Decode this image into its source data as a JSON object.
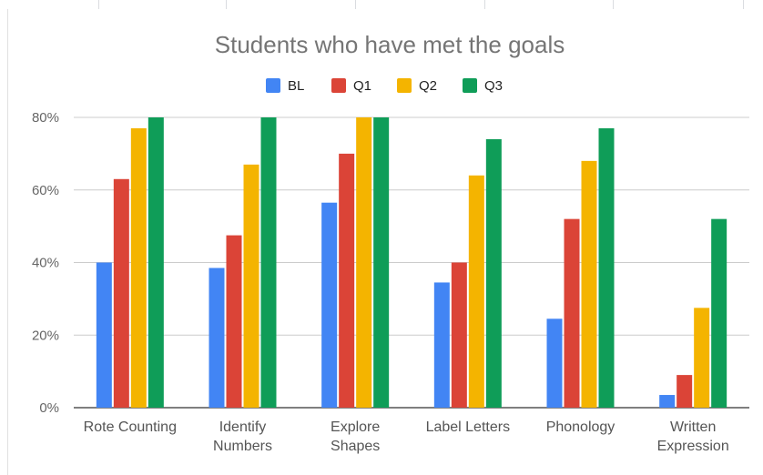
{
  "chart_data": {
    "type": "bar",
    "title": "Students who have met the goals",
    "categories": [
      [
        "Rote Counting"
      ],
      [
        "Identify",
        "Numbers"
      ],
      [
        "Explore",
        "Shapes"
      ],
      [
        "Label Letters"
      ],
      [
        "Phonology"
      ],
      [
        "Written",
        "Expression"
      ]
    ],
    "series": [
      {
        "name": "BL",
        "color": "#4285f4",
        "values": [
          40,
          38.5,
          56.5,
          34.5,
          24.5,
          3.5
        ]
      },
      {
        "name": "Q1",
        "color": "#db4437",
        "values": [
          63,
          47.5,
          70,
          40,
          52,
          9
        ]
      },
      {
        "name": "Q2",
        "color": "#f4b400",
        "values": [
          77,
          67,
          80,
          64,
          68,
          27.5
        ]
      },
      {
        "name": "Q3",
        "color": "#0f9d58",
        "values": [
          80,
          80,
          80,
          74,
          77,
          52
        ]
      }
    ],
    "ylim": [
      0,
      80
    ],
    "yticks": [
      0,
      20,
      40,
      60,
      80
    ],
    "ytick_format": "percent",
    "grid": true,
    "legend_position": "top"
  }
}
